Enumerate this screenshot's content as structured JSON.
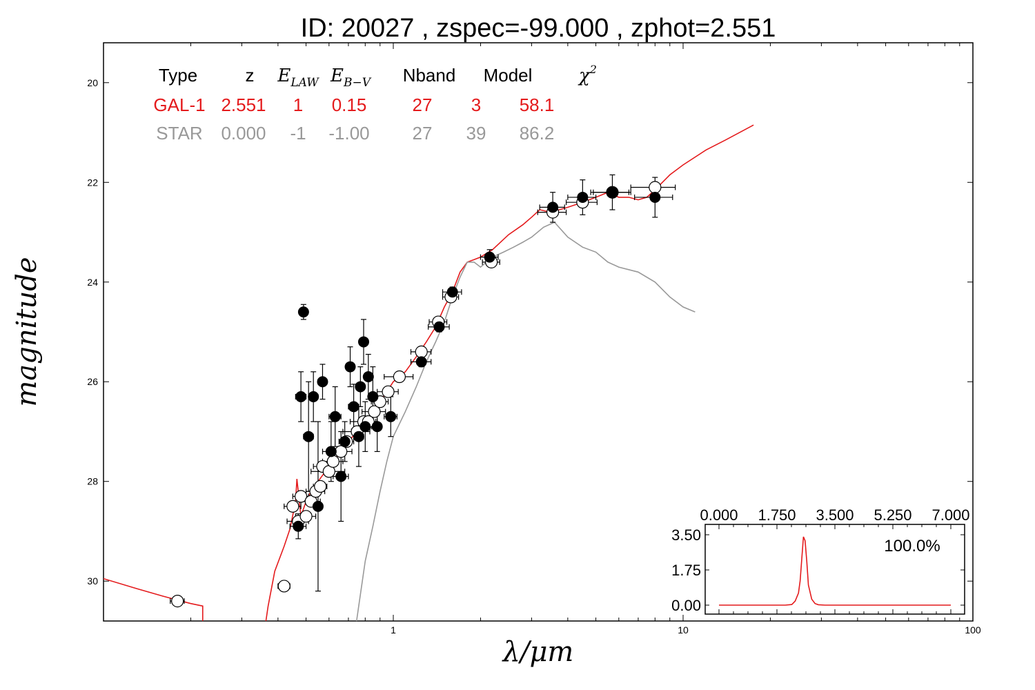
{
  "title": "ID:  20027 , zspec=-99.000 , zphot=2.551",
  "colors": {
    "galaxy": "#e41a1c",
    "star": "#999999",
    "observed_fill": "#000000",
    "model_mag_fill": "#ffffff"
  },
  "fit_table": {
    "headers": [
      "Type",
      "z",
      "E_LAW",
      "E_B-V",
      "Nband",
      "Model",
      "χ²"
    ],
    "rows": [
      {
        "name": "galaxy-row",
        "color": "#e41a1c",
        "cells": [
          "GAL-1",
          "2.551",
          "1",
          "0.15",
          "27",
          "3",
          "58.1"
        ]
      },
      {
        "name": "star-row",
        "color": "#999999",
        "cells": [
          "STAR",
          "0.000",
          "-1",
          "-1.00",
          "27",
          "39",
          "86.2"
        ]
      }
    ]
  },
  "chart_data": [
    {
      "type": "scatter",
      "xlabel": "λ/μm",
      "ylabel": "magnitude",
      "x_scale": "log",
      "xlim": [
        0.1,
        100
      ],
      "ylim": [
        30.8,
        19.2
      ],
      "x_tick_labels": [
        "1",
        "10",
        "100"
      ],
      "x_ticks": [
        1,
        10,
        100
      ],
      "y_ticks": [
        20,
        22,
        24,
        26,
        28,
        30
      ],
      "y_tick_labels": [
        "20",
        "22",
        "24",
        "26",
        "28",
        "30"
      ],
      "grid": false,
      "series": [
        {
          "kind": "observed",
          "points": [
            [
              0.47,
              28.9
            ],
            [
              0.48,
              26.3
            ],
            [
              0.49,
              24.6
            ],
            [
              0.51,
              27.1
            ],
            [
              0.53,
              26.3
            ],
            [
              0.55,
              28.5
            ],
            [
              0.57,
              26.0
            ],
            [
              0.61,
              27.4
            ],
            [
              0.63,
              26.7
            ],
            [
              0.66,
              27.9
            ],
            [
              0.68,
              27.2
            ],
            [
              0.71,
              25.7
            ],
            [
              0.73,
              26.5
            ],
            [
              0.76,
              27.1
            ],
            [
              0.77,
              26.1
            ],
            [
              0.79,
              25.2
            ],
            [
              0.8,
              26.9
            ],
            [
              0.82,
              25.9
            ],
            [
              0.85,
              26.3
            ],
            [
              0.88,
              26.9
            ],
            [
              0.98,
              26.7
            ],
            [
              1.25,
              25.6
            ],
            [
              1.44,
              24.9
            ],
            [
              1.6,
              24.2
            ],
            [
              2.15,
              23.5
            ],
            [
              3.55,
              22.5
            ],
            [
              4.5,
              22.3
            ],
            [
              5.7,
              22.2
            ],
            [
              8.0,
              22.3
            ]
          ],
          "yerr": [
            0.25,
            0.5,
            0.15,
            1.1,
            0.5,
            1.7,
            0.35,
            0.6,
            0.6,
            0.9,
            0.4,
            0.4,
            0.45,
            0.6,
            0.4,
            0.45,
            0.5,
            0.45,
            0.6,
            0.5,
            0.4,
            0.1,
            0.1,
            0.1,
            0.15,
            0.3,
            0.35,
            0.35,
            0.4
          ],
          "xerr": [
            0.03,
            0.02,
            0.01,
            0.02,
            0.02,
            0.02,
            0.02,
            0.04,
            0.03,
            0.04,
            0.03,
            0.02,
            0.03,
            0.03,
            0.02,
            0.02,
            0.04,
            0.02,
            0.02,
            0.03,
            0.05,
            0.1,
            0.12,
            0.12,
            0.15,
            0.35,
            0.5,
            0.8,
            1.2
          ]
        },
        {
          "kind": "model-magnitudes",
          "points": [
            [
              0.18,
              30.4
            ],
            [
              0.42,
              30.1
            ],
            [
              0.45,
              28.5
            ],
            [
              0.47,
              28.8
            ],
            [
              0.48,
              28.3
            ],
            [
              0.5,
              28.7
            ],
            [
              0.52,
              28.4
            ],
            [
              0.54,
              28.2
            ],
            [
              0.56,
              28.1
            ],
            [
              0.57,
              27.7
            ],
            [
              0.6,
              27.8
            ],
            [
              0.62,
              27.6
            ],
            [
              0.66,
              27.4
            ],
            [
              0.69,
              27.2
            ],
            [
              0.75,
              27.0
            ],
            [
              0.79,
              26.8
            ],
            [
              0.82,
              26.8
            ],
            [
              0.86,
              26.6
            ],
            [
              0.9,
              26.4
            ],
            [
              0.96,
              26.2
            ],
            [
              1.05,
              25.9
            ],
            [
              1.25,
              25.4
            ],
            [
              1.43,
              24.8
            ],
            [
              1.58,
              24.3
            ],
            [
              2.18,
              23.6
            ],
            [
              3.55,
              22.6
            ],
            [
              4.5,
              22.4
            ],
            [
              5.7,
              22.2
            ],
            [
              8.0,
              22.1
            ]
          ],
          "xerr": [
            0.01,
            0.02,
            0.03,
            0.04,
            0.03,
            0.04,
            0.04,
            0.04,
            0.03,
            0.04,
            0.08,
            0.05,
            0.06,
            0.04,
            0.08,
            0.08,
            0.06,
            0.08,
            0.06,
            0.08,
            0.12,
            0.1,
            0.1,
            0.1,
            0.15,
            0.4,
            0.55,
            0.9,
            1.4
          ]
        },
        {
          "kind": "galaxy-template",
          "color": "#e41a1c",
          "points": [
            [
              0.1,
              29.95
            ],
            [
              0.13,
              30.15
            ],
            [
              0.16,
              30.3
            ],
            [
              0.2,
              30.45
            ],
            [
              0.22,
              30.5
            ],
            [
              0.22,
              31.2
            ],
            [
              0.355,
              31.2
            ],
            [
              0.37,
              30.5
            ],
            [
              0.39,
              29.8
            ],
            [
              0.42,
              29.3
            ],
            [
              0.44,
              28.95
            ],
            [
              0.46,
              28.4
            ],
            [
              0.465,
              27.95
            ],
            [
              0.48,
              28.7
            ],
            [
              0.5,
              28.4
            ],
            [
              0.52,
              28.2
            ],
            [
              0.55,
              28.0
            ],
            [
              0.6,
              27.7
            ],
            [
              0.65,
              27.45
            ],
            [
              0.7,
              27.2
            ],
            [
              0.75,
              27.0
            ],
            [
              0.8,
              26.8
            ],
            [
              0.85,
              26.6
            ],
            [
              0.9,
              26.4
            ],
            [
              0.95,
              26.2
            ],
            [
              1.0,
              26.0
            ],
            [
              1.1,
              25.8
            ],
            [
              1.2,
              25.5
            ],
            [
              1.3,
              25.2
            ],
            [
              1.4,
              24.9
            ],
            [
              1.5,
              24.5
            ],
            [
              1.6,
              24.2
            ],
            [
              1.7,
              23.8
            ],
            [
              1.8,
              23.6
            ],
            [
              1.9,
              23.55
            ],
            [
              2.0,
              23.5
            ],
            [
              2.2,
              23.35
            ],
            [
              2.5,
              23.05
            ],
            [
              2.8,
              22.85
            ],
            [
              3.0,
              22.7
            ],
            [
              3.2,
              22.55
            ],
            [
              3.5,
              22.6
            ],
            [
              4.0,
              22.5
            ],
            [
              4.5,
              22.4
            ],
            [
              5.0,
              22.3
            ],
            [
              5.5,
              22.2
            ],
            [
              6.0,
              22.3
            ],
            [
              6.5,
              22.3
            ],
            [
              7.0,
              22.35
            ],
            [
              7.5,
              22.3
            ],
            [
              8.0,
              22.15
            ],
            [
              9.0,
              21.85
            ],
            [
              10.0,
              21.65
            ],
            [
              12.0,
              21.35
            ],
            [
              14.0,
              21.15
            ],
            [
              17.5,
              20.85
            ]
          ]
        },
        {
          "kind": "star-template",
          "color": "#999999",
          "points": [
            [
              0.73,
              31.2
            ],
            [
              0.76,
              30.5
            ],
            [
              0.8,
              29.6
            ],
            [
              0.85,
              28.9
            ],
            [
              0.9,
              28.2
            ],
            [
              0.95,
              27.6
            ],
            [
              1.0,
              27.1
            ],
            [
              1.1,
              26.6
            ],
            [
              1.2,
              26.1
            ],
            [
              1.3,
              25.6
            ],
            [
              1.4,
              25.2
            ],
            [
              1.5,
              24.8
            ],
            [
              1.6,
              24.3
            ],
            [
              1.7,
              23.9
            ],
            [
              1.8,
              23.6
            ],
            [
              1.9,
              23.6
            ],
            [
              2.0,
              23.7
            ],
            [
              2.2,
              23.5
            ],
            [
              2.4,
              23.4
            ],
            [
              2.6,
              23.3
            ],
            [
              2.8,
              23.2
            ],
            [
              3.0,
              23.1
            ],
            [
              3.3,
              22.9
            ],
            [
              3.6,
              22.8
            ],
            [
              4.0,
              23.1
            ],
            [
              4.5,
              23.3
            ],
            [
              5.0,
              23.4
            ],
            [
              5.5,
              23.6
            ],
            [
              6.0,
              23.7
            ],
            [
              7.0,
              23.8
            ],
            [
              8.0,
              24.0
            ],
            [
              9.0,
              24.3
            ],
            [
              10.0,
              24.5
            ],
            [
              11.0,
              24.6
            ]
          ]
        }
      ]
    },
    {
      "type": "line",
      "inset": true,
      "xlim": [
        0.0,
        7.0
      ],
      "ylim": [
        0.0,
        3.5
      ],
      "x_tick_labels": [
        "0.000",
        "1.750",
        "3.500",
        "5.250",
        "7.000"
      ],
      "x_ticks": [
        0,
        1.75,
        3.5,
        5.25,
        7.0
      ],
      "y_tick_labels": [
        "3.50",
        "1.75",
        "0.00"
      ],
      "y_ticks": [
        3.5,
        1.75,
        0.0
      ],
      "annotation": "100.0%",
      "series": [
        {
          "color": "#e41a1c",
          "points": [
            [
              0.0,
              0.0
            ],
            [
              2.0,
              0.0
            ],
            [
              2.2,
              0.03
            ],
            [
              2.3,
              0.2
            ],
            [
              2.4,
              0.6
            ],
            [
              2.45,
              1.2
            ],
            [
              2.5,
              2.3
            ],
            [
              2.55,
              3.4
            ],
            [
              2.6,
              3.2
            ],
            [
              2.65,
              2.2
            ],
            [
              2.7,
              1.0
            ],
            [
              2.8,
              0.3
            ],
            [
              2.9,
              0.08
            ],
            [
              3.0,
              0.02
            ],
            [
              3.2,
              0.0
            ],
            [
              7.0,
              0.0
            ]
          ]
        }
      ]
    }
  ]
}
